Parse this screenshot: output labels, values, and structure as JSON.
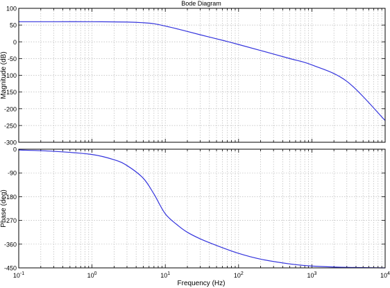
{
  "chart_data": [
    {
      "type": "line",
      "title": "Bode Diagram",
      "ylabel": "Magnitude (dB)",
      "xscale": "log",
      "xlim": [
        0.1,
        10000
      ],
      "ylim": [
        -300,
        100
      ],
      "yticks": [
        100,
        50,
        0,
        -50,
        -100,
        -150,
        -200,
        -250,
        -300
      ],
      "grid": true,
      "series": [
        {
          "color": "#3333dd",
          "x": [
            0.1,
            0.3,
            1,
            3,
            5,
            7,
            10,
            15,
            20,
            30,
            50,
            70,
            100,
            200,
            500,
            1000,
            3000,
            10000
          ],
          "y": [
            60,
            60,
            60,
            59,
            57,
            54,
            47,
            38,
            31,
            21,
            9,
            1,
            -8,
            -26,
            -50,
            -69,
            -118,
            -235
          ]
        }
      ]
    },
    {
      "type": "line",
      "ylabel": "Phase (deg)",
      "xlabel": "Frequency (Hz)",
      "xscale": "log",
      "xlim": [
        0.1,
        10000
      ],
      "ylim": [
        -450,
        0
      ],
      "yticks": [
        0,
        -90,
        -180,
        -270,
        -360,
        -450
      ],
      "grid": true,
      "series": [
        {
          "color": "#3333dd",
          "x": [
            0.1,
            0.3,
            1,
            2,
            3,
            5,
            7,
            10,
            15,
            20,
            30,
            50,
            100,
            200,
            500,
            1000,
            3000,
            10000
          ],
          "y": [
            -3,
            -8,
            -20,
            -40,
            -62,
            -110,
            -170,
            -245,
            -290,
            -315,
            -340,
            -365,
            -395,
            -417,
            -435,
            -443,
            -448,
            -450
          ]
        }
      ]
    }
  ],
  "x_tick_labels": [
    {
      "base": "10",
      "exp": "-1"
    },
    {
      "base": "10",
      "exp": "0"
    },
    {
      "base": "10",
      "exp": "1"
    },
    {
      "base": "10",
      "exp": "2"
    },
    {
      "base": "10",
      "exp": "3"
    },
    {
      "base": "10",
      "exp": "4"
    }
  ],
  "colors": {
    "line": "#3333dd",
    "grid": "#b8b8b8",
    "axes": "#000000"
  }
}
